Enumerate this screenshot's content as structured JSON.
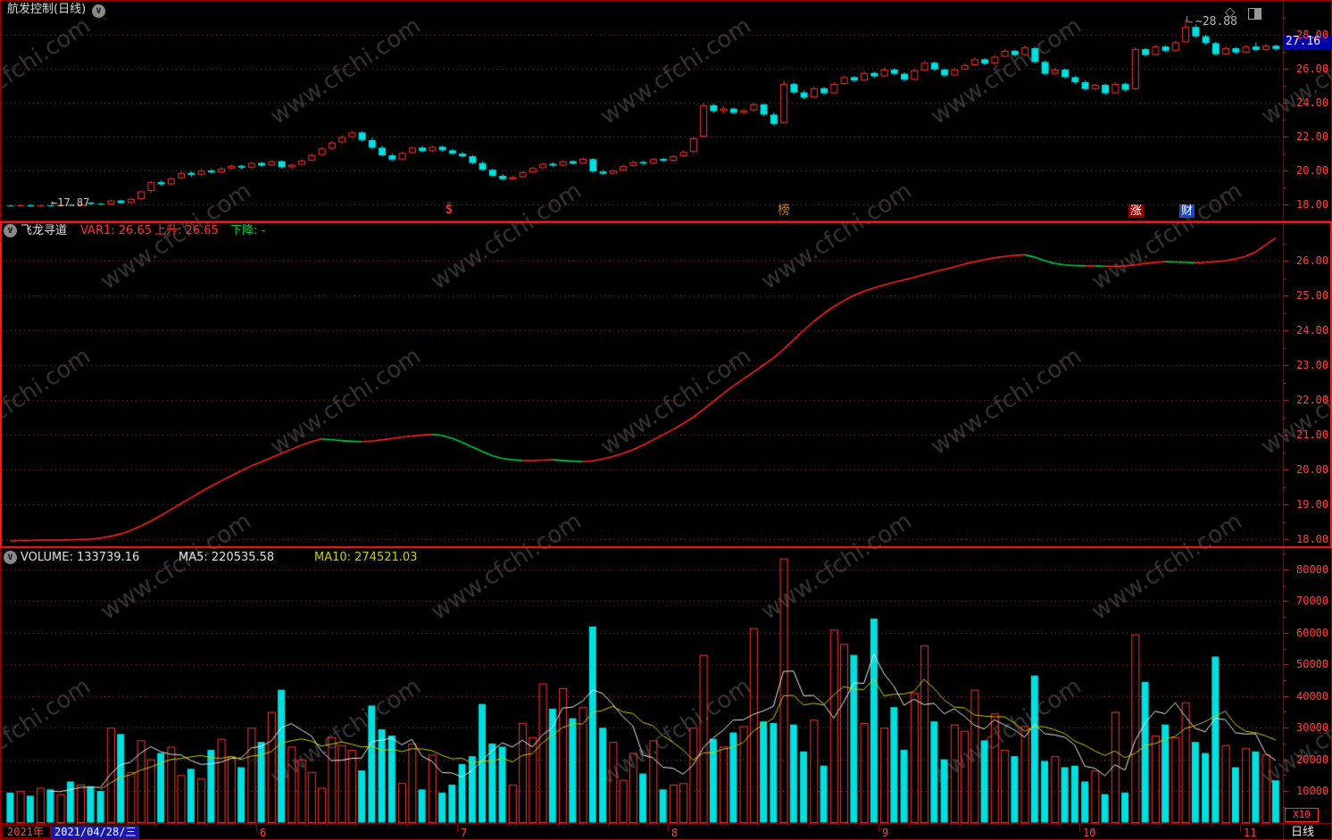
{
  "window": {
    "title": "航发控制(日线)"
  },
  "watermark": {
    "text": "www.cfchi.com"
  },
  "price_panel": {
    "high_annotation": "~28.88",
    "low_annotation": "←17.87",
    "last_price_badge": "27.16",
    "markers": [
      {
        "label": "Ŝ",
        "index": 44,
        "style": "dividend"
      },
      {
        "label": "榜",
        "index": 77,
        "style": "orange-text"
      },
      {
        "label": "涨",
        "index": 112,
        "style": "red-badge"
      },
      {
        "label": "财",
        "index": 117,
        "style": "blue-badge"
      }
    ]
  },
  "indicator_panel": {
    "name": "飞龙寻道",
    "var1_label": "VAR1: 26.65",
    "up_label": "上升: 26.65",
    "down_label": "下降: -"
  },
  "volume_panel": {
    "volume_label": "VOLUME: 133739.16",
    "ma5_label": "MA5: 220535.58",
    "ma10_label": "MA10: 274521.03",
    "multiplier_label": "X10"
  },
  "status_bar": {
    "year_label": "2021年",
    "date_label": "2021/04/28/三",
    "period_label": "日线",
    "months": [
      {
        "label": "6",
        "start_index": 25
      },
      {
        "label": "7",
        "start_index": 45
      },
      {
        "label": "8",
        "start_index": 66
      },
      {
        "label": "9",
        "start_index": 87
      },
      {
        "label": "10",
        "start_index": 107
      },
      {
        "label": "11",
        "start_index": 123
      }
    ]
  },
  "axes": {
    "price": [
      "28.00",
      "26.00",
      "24.00",
      "22.00",
      "20.00",
      "18.00"
    ],
    "indicator": [
      "26.00",
      "25.00",
      "24.00",
      "23.00",
      "22.00",
      "21.00",
      "20.00",
      "19.00",
      "18.00"
    ],
    "volume": [
      "80000",
      "70000",
      "60000",
      "50000",
      "40000",
      "30000",
      "20000",
      "10000"
    ]
  },
  "colors": {
    "up": "#ff3232",
    "down": "#00e0e0",
    "grid": "#c82828",
    "border": "#b00000",
    "active_border": "#ff1c1c",
    "axis_text": "#ff4040",
    "badge_bg": "#0000aa",
    "var1_rise": "#ff2222",
    "var1_fall": "#00cc44",
    "ma5": "#e8e8e8",
    "ma10": "#cccc00",
    "watermark": "#808080",
    "zhang_badge": "#990000",
    "cai_badge": "#1846c8",
    "bang_text": "#c07830"
  },
  "chart_data": [
    {
      "type": "candlestick",
      "panel": "price",
      "title": "航发控制 日线",
      "ylim": [
        17.0,
        30.0
      ],
      "grid_values": [
        18,
        20,
        22,
        24,
        26,
        28
      ],
      "high_value": 28.88,
      "high_index": 117,
      "low_value": 17.87,
      "low_index": 4,
      "last_close": 27.16,
      "ohlc": [
        [
          17.95,
          17.98,
          17.88,
          17.9
        ],
        [
          17.9,
          18.0,
          17.88,
          17.96
        ],
        [
          17.97,
          18.02,
          17.89,
          17.9
        ],
        [
          17.9,
          17.99,
          17.88,
          17.95
        ],
        [
          17.96,
          17.99,
          17.87,
          17.91
        ],
        [
          17.91,
          18.04,
          17.89,
          17.99
        ],
        [
          18.0,
          18.05,
          17.9,
          17.94
        ],
        [
          17.94,
          18.08,
          17.91,
          18.02
        ],
        [
          18.12,
          18.16,
          17.98,
          18.04
        ],
        [
          18.06,
          18.1,
          17.96,
          18.0
        ],
        [
          18.01,
          18.3,
          17.98,
          18.24
        ],
        [
          18.25,
          18.28,
          18.04,
          18.1
        ],
        [
          18.1,
          18.4,
          18.06,
          18.34
        ],
        [
          18.34,
          18.85,
          18.3,
          18.78
        ],
        [
          18.8,
          19.4,
          18.72,
          19.32
        ],
        [
          19.33,
          19.45,
          19.1,
          19.2
        ],
        [
          19.2,
          19.62,
          19.12,
          19.55
        ],
        [
          19.56,
          19.95,
          19.48,
          19.86
        ],
        [
          19.87,
          19.98,
          19.65,
          19.75
        ],
        [
          19.76,
          20.1,
          19.7,
          20.0
        ],
        [
          20.01,
          20.12,
          19.82,
          19.9
        ],
        [
          19.9,
          20.2,
          19.85,
          20.12
        ],
        [
          20.13,
          20.36,
          20.05,
          20.28
        ],
        [
          20.29,
          20.35,
          20.08,
          20.18
        ],
        [
          20.18,
          20.52,
          20.12,
          20.45
        ],
        [
          20.46,
          20.52,
          20.22,
          20.3
        ],
        [
          20.3,
          20.62,
          20.25,
          20.55
        ],
        [
          20.56,
          20.6,
          20.12,
          20.2
        ],
        [
          20.2,
          20.42,
          20.12,
          20.35
        ],
        [
          20.35,
          20.68,
          20.3,
          20.6
        ],
        [
          20.6,
          21.0,
          20.55,
          20.92
        ],
        [
          20.93,
          21.4,
          20.85,
          21.3
        ],
        [
          21.3,
          21.75,
          21.22,
          21.65
        ],
        [
          21.66,
          22.08,
          21.58,
          21.98
        ],
        [
          21.98,
          22.35,
          21.9,
          22.25
        ],
        [
          22.25,
          22.32,
          21.7,
          21.8
        ],
        [
          21.8,
          21.95,
          21.25,
          21.35
        ],
        [
          21.35,
          21.48,
          20.82,
          20.9
        ],
        [
          20.9,
          21.02,
          20.55,
          20.65
        ],
        [
          20.66,
          21.12,
          20.6,
          21.05
        ],
        [
          21.05,
          21.42,
          21.0,
          21.35
        ],
        [
          21.36,
          21.45,
          21.08,
          21.15
        ],
        [
          21.15,
          21.48,
          21.1,
          21.4
        ],
        [
          21.41,
          21.46,
          21.12,
          21.2
        ],
        [
          21.2,
          21.28,
          20.92,
          21.0
        ],
        [
          21.0,
          21.1,
          20.78,
          20.85
        ],
        [
          20.85,
          20.92,
          20.38,
          20.45
        ],
        [
          20.45,
          20.55,
          19.98,
          20.05
        ],
        [
          20.05,
          20.12,
          19.62,
          19.7
        ],
        [
          19.7,
          19.8,
          19.42,
          19.5
        ],
        [
          19.5,
          19.7,
          19.45,
          19.62
        ],
        [
          19.62,
          19.98,
          19.58,
          19.9
        ],
        [
          19.9,
          20.22,
          19.85,
          20.15
        ],
        [
          20.15,
          20.48,
          20.1,
          20.4
        ],
        [
          20.41,
          20.48,
          20.22,
          20.3
        ],
        [
          20.3,
          20.62,
          20.25,
          20.55
        ],
        [
          20.56,
          20.62,
          20.35,
          20.42
        ],
        [
          20.42,
          20.78,
          20.38,
          20.7
        ],
        [
          20.68,
          20.72,
          19.88,
          19.95
        ],
        [
          19.95,
          20.05,
          19.75,
          19.82
        ],
        [
          19.82,
          20.08,
          19.78,
          20.0
        ],
        [
          20.0,
          20.35,
          19.96,
          20.28
        ],
        [
          20.28,
          20.58,
          20.24,
          20.5
        ],
        [
          20.51,
          20.58,
          20.35,
          20.42
        ],
        [
          20.42,
          20.75,
          20.38,
          20.68
        ],
        [
          20.69,
          20.75,
          20.5,
          20.58
        ],
        [
          20.58,
          20.92,
          20.54,
          20.85
        ],
        [
          20.85,
          21.18,
          20.8,
          21.1
        ],
        [
          21.1,
          21.98,
          21.05,
          21.9
        ],
        [
          22.0,
          23.95,
          21.95,
          23.85
        ],
        [
          23.85,
          23.95,
          23.4,
          23.5
        ],
        [
          23.5,
          23.78,
          23.35,
          23.65
        ],
        [
          23.65,
          23.72,
          23.3,
          23.4
        ],
        [
          23.4,
          23.66,
          23.3,
          23.55
        ],
        [
          23.55,
          24.0,
          23.48,
          23.9
        ],
        [
          23.9,
          23.95,
          23.2,
          23.3
        ],
        [
          23.3,
          23.42,
          22.65,
          22.75
        ],
        [
          22.8,
          25.3,
          22.75,
          25.1
        ],
        [
          25.1,
          25.18,
          24.5,
          24.6
        ],
        [
          24.6,
          24.72,
          24.2,
          24.3
        ],
        [
          24.3,
          24.95,
          24.25,
          24.85
        ],
        [
          24.85,
          24.92,
          24.45,
          24.55
        ],
        [
          24.55,
          25.2,
          24.5,
          25.1
        ],
        [
          25.1,
          25.6,
          25.05,
          25.5
        ],
        [
          25.5,
          25.58,
          25.2,
          25.3
        ],
        [
          25.3,
          25.85,
          25.25,
          25.75
        ],
        [
          25.75,
          25.82,
          25.45,
          25.55
        ],
        [
          25.55,
          26.05,
          25.5,
          25.95
        ],
        [
          25.95,
          26.02,
          25.6,
          25.7
        ],
        [
          25.7,
          25.78,
          25.25,
          25.35
        ],
        [
          25.35,
          26.0,
          25.3,
          25.9
        ],
        [
          25.9,
          26.45,
          25.85,
          26.35
        ],
        [
          26.35,
          26.42,
          25.85,
          25.95
        ],
        [
          25.95,
          26.02,
          25.5,
          25.6
        ],
        [
          25.6,
          26.05,
          25.55,
          25.95
        ],
        [
          25.95,
          26.3,
          25.9,
          26.2
        ],
        [
          26.2,
          26.65,
          26.15,
          26.55
        ],
        [
          26.55,
          26.62,
          26.2,
          26.3
        ],
        [
          26.3,
          26.8,
          26.25,
          26.7
        ],
        [
          26.7,
          27.15,
          26.65,
          27.05
        ],
        [
          27.05,
          27.12,
          26.7,
          26.8
        ],
        [
          26.8,
          27.35,
          26.75,
          27.25
        ],
        [
          27.2,
          27.28,
          26.3,
          26.4
        ],
        [
          26.4,
          26.48,
          25.6,
          25.7
        ],
        [
          25.7,
          26.05,
          25.62,
          25.95
        ],
        [
          25.95,
          26.0,
          25.4,
          25.5
        ],
        [
          25.5,
          25.58,
          25.1,
          25.2
        ],
        [
          25.2,
          25.3,
          24.7,
          24.8
        ],
        [
          24.8,
          25.12,
          24.72,
          25.05
        ],
        [
          25.05,
          25.1,
          24.45,
          24.55
        ],
        [
          24.55,
          25.2,
          24.5,
          25.1
        ],
        [
          25.1,
          25.18,
          24.65,
          24.75
        ],
        [
          24.8,
          27.25,
          24.75,
          27.15
        ],
        [
          27.15,
          27.22,
          26.7,
          26.8
        ],
        [
          26.8,
          27.4,
          26.75,
          27.3
        ],
        [
          27.3,
          27.38,
          26.95,
          27.05
        ],
        [
          27.05,
          27.65,
          27.0,
          27.55
        ],
        [
          27.55,
          28.88,
          27.5,
          28.45
        ],
        [
          28.45,
          28.6,
          27.8,
          27.9
        ],
        [
          27.9,
          28.0,
          27.4,
          27.5
        ],
        [
          27.5,
          27.58,
          26.75,
          26.85
        ],
        [
          26.85,
          27.3,
          26.8,
          27.2
        ],
        [
          27.2,
          27.28,
          26.85,
          26.95
        ],
        [
          26.95,
          27.38,
          26.9,
          27.3
        ],
        [
          27.3,
          27.55,
          27.0,
          27.1
        ],
        [
          27.1,
          27.45,
          27.05,
          27.35
        ],
        [
          27.35,
          27.42,
          27.05,
          27.16
        ]
      ]
    },
    {
      "type": "line",
      "panel": "indicator",
      "name": "VAR1",
      "ylim": [
        17.8,
        27.2
      ],
      "grid_values": [
        18,
        19,
        20,
        21,
        22,
        23,
        24,
        25,
        26
      ],
      "values": [
        17.95,
        17.96,
        17.96,
        17.97,
        17.97,
        17.97,
        17.98,
        17.99,
        18.0,
        18.03,
        18.08,
        18.15,
        18.25,
        18.38,
        18.52,
        18.68,
        18.85,
        19.02,
        19.19,
        19.36,
        19.52,
        19.67,
        19.82,
        19.96,
        20.1,
        20.22,
        20.34,
        20.46,
        20.58,
        20.7,
        20.8,
        20.88,
        20.86,
        20.83,
        20.81,
        20.8,
        20.82,
        20.85,
        20.89,
        20.93,
        20.96,
        20.99,
        21.01,
        20.98,
        20.9,
        20.78,
        20.65,
        20.52,
        20.4,
        20.32,
        20.28,
        20.26,
        20.26,
        20.27,
        20.28,
        20.26,
        20.24,
        20.23,
        20.25,
        20.3,
        20.37,
        20.46,
        20.57,
        20.7,
        20.85,
        21.0,
        21.15,
        21.32,
        21.5,
        21.72,
        21.95,
        22.18,
        22.4,
        22.6,
        22.8,
        23.0,
        23.2,
        23.45,
        23.72,
        24.0,
        24.25,
        24.48,
        24.68,
        24.85,
        25.0,
        25.12,
        25.22,
        25.3,
        25.38,
        25.45,
        25.52,
        25.6,
        25.68,
        25.75,
        25.82,
        25.9,
        25.97,
        26.03,
        26.08,
        26.12,
        26.15,
        26.17,
        26.1,
        26.0,
        25.92,
        25.88,
        25.86,
        25.85,
        25.85,
        25.84,
        25.84,
        25.85,
        25.88,
        25.92,
        25.95,
        25.97,
        25.96,
        25.95,
        25.94,
        25.95,
        25.97,
        26.0,
        26.05,
        26.12,
        26.25,
        26.45,
        26.65
      ]
    },
    {
      "type": "bar",
      "panel": "volume",
      "name": "VOLUME",
      "ylim": [
        0,
        87000
      ],
      "grid_values": [
        10000,
        20000,
        30000,
        40000,
        50000,
        60000,
        70000,
        80000
      ],
      "ma_periods": [
        5,
        10
      ],
      "values": [
        9500,
        10000,
        8500,
        11000,
        10500,
        9000,
        13000,
        12000,
        11500,
        10000,
        30000,
        28000,
        16000,
        26000,
        20000,
        22000,
        24000,
        15000,
        17000,
        14000,
        23000,
        26500,
        21000,
        17500,
        30000,
        25500,
        35000,
        42000,
        24000,
        20000,
        16000,
        11000,
        27000,
        24500,
        23000,
        16500,
        37000,
        29500,
        27500,
        12500,
        25000,
        10500,
        21500,
        9500,
        12000,
        18500,
        21000,
        37500,
        25000,
        24000,
        12000,
        31500,
        27000,
        44000,
        36000,
        42500,
        33000,
        36500,
        62000,
        30000,
        25500,
        13500,
        22000,
        15500,
        26000,
        10500,
        12000,
        12500,
        30000,
        53000,
        26500,
        24000,
        28500,
        30500,
        61500,
        32000,
        31500,
        83500,
        31000,
        22500,
        32500,
        18000,
        61000,
        56500,
        53000,
        31500,
        64500,
        30000,
        36500,
        23000,
        41000,
        56000,
        32000,
        20000,
        31000,
        29000,
        42000,
        26000,
        34500,
        23000,
        21000,
        30500,
        46500,
        19500,
        21000,
        17500,
        18000,
        13000,
        16500,
        9000,
        35000,
        9500,
        59500,
        44500,
        27500,
        31000,
        27000,
        38000,
        25500,
        22000,
        52500,
        24500,
        17500,
        23500,
        22500,
        21500,
        13374
      ]
    }
  ]
}
